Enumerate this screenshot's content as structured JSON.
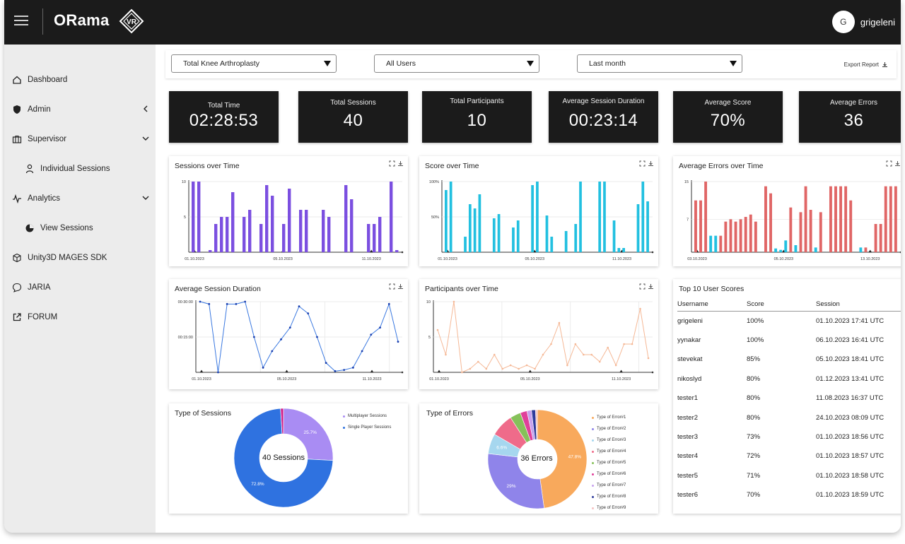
{
  "app": {
    "title": "ORama",
    "badge": "VR"
  },
  "user": {
    "initial": "G",
    "name": "grigeleni"
  },
  "sidebar": {
    "items": [
      {
        "label": "Dashboard",
        "icon": "home-icon"
      },
      {
        "label": "Admin",
        "icon": "shield-icon"
      },
      {
        "label": "Supervisor",
        "icon": "briefcase-icon"
      },
      {
        "label": "Individual Sessions",
        "icon": "person-icon"
      },
      {
        "label": "Analytics",
        "icon": "pulse-icon"
      },
      {
        "label": "View Sessions",
        "icon": "pie-icon"
      },
      {
        "label": "Unity3D MAGES SDK",
        "icon": "cube-icon"
      },
      {
        "label": "JARIA",
        "icon": "chat-icon"
      },
      {
        "label": "FORUM",
        "icon": "external-link-icon"
      }
    ]
  },
  "filters": {
    "procedure": "Total Knee Arthroplasty",
    "users": "All Users",
    "period": "Last month",
    "export_label": "Export Report"
  },
  "stats": [
    {
      "label": "Total Time",
      "value": "02:28:53"
    },
    {
      "label": "Total Sessions",
      "value": "40"
    },
    {
      "label": "Total Participants",
      "value": "10"
    },
    {
      "label": "Average Session Duration",
      "value": "00:23:14"
    },
    {
      "label": "Average Score",
      "value": "70%"
    },
    {
      "label": "Average Errors",
      "value": "36"
    }
  ],
  "chart_data": [
    {
      "type": "bar",
      "title": "Sessions over Time",
      "color": "#7b4fe0",
      "ylim": [
        0,
        10
      ],
      "yticks": [
        "10",
        "5"
      ],
      "xticks": [
        "01.10.2023",
        "05.10.2023",
        "11.10.2023"
      ],
      "values": [
        10,
        10,
        0,
        0.3,
        4,
        5,
        5,
        8.5,
        0,
        5,
        6,
        0,
        4,
        9.5,
        8,
        0,
        4,
        9,
        0,
        6,
        6,
        0,
        0,
        6,
        5,
        0,
        0,
        9.5,
        7.5,
        0,
        0,
        4,
        4,
        5,
        0,
        10,
        0.3
      ]
    },
    {
      "type": "bar",
      "title": "Score over Time",
      "color": "#22c0e0",
      "ylim": [
        0,
        100
      ],
      "yticks": [
        "100%",
        "50%"
      ],
      "xticks": [
        "01.10.2023",
        "05.10.2023",
        "11.10.2023"
      ],
      "values": [
        88,
        100,
        0,
        0,
        22,
        68,
        62,
        82,
        0,
        0,
        48,
        54,
        0,
        0,
        35,
        45,
        0,
        0,
        95,
        100,
        0,
        52,
        22,
        0,
        0,
        30,
        0,
        40,
        100,
        0,
        0,
        0,
        100,
        100,
        0,
        45,
        6,
        6,
        0,
        0,
        68,
        100,
        72
      ]
    },
    {
      "type": "bar",
      "title": "Average Errors over Time",
      "color": "#e06666",
      "highlight_color": "#22c0e0",
      "ylim": [
        0,
        15
      ],
      "yticks": [
        "15",
        "7"
      ],
      "xticks": [
        "03.10.2023",
        "05.10.2023",
        "13.10.2023"
      ],
      "values": [
        11,
        11,
        15,
        3.5,
        3.5,
        3.5,
        6.5,
        7,
        6.5,
        7,
        7.5,
        8,
        6.5,
        0,
        14,
        12.5,
        0.8,
        0.5,
        2.5,
        9.5,
        1.5,
        8.5,
        14,
        9,
        1,
        8.5,
        0,
        14,
        14,
        14,
        14,
        11,
        0,
        1,
        1,
        0,
        6,
        6,
        14,
        14,
        14
      ],
      "highlight_indices": [
        3,
        4,
        16,
        17,
        18,
        20,
        24,
        32,
        33
      ]
    },
    {
      "type": "line",
      "title": "Average Session Duration",
      "color": "#3a78e0",
      "yticks": [
        "00:30:00",
        "00:15:00"
      ],
      "xticks": [
        "01.10.2023",
        "05.10.2023",
        "11.10.2023"
      ],
      "values": [
        30,
        29,
        0,
        29,
        29,
        30,
        15,
        2,
        9,
        14,
        19,
        28,
        25,
        15,
        4,
        0.5,
        1,
        2,
        9,
        16,
        19,
        29,
        13
      ]
    },
    {
      "type": "line",
      "title": "Participants over Time",
      "color": "#f5b896",
      "ylim": [
        0,
        10
      ],
      "yticks": [
        "10",
        "5"
      ],
      "xticks": [
        "01.10.2023",
        "05.10.2023",
        "11.10.2023"
      ],
      "values": [
        6,
        2.5,
        10,
        0,
        0.5,
        1.5,
        0.5,
        2.5,
        0.5,
        1,
        0.5,
        1,
        0.5,
        2.5,
        4,
        7,
        1,
        4,
        2.5,
        2.5,
        1.5,
        3.5,
        1,
        4,
        4,
        9,
        2
      ]
    },
    {
      "type": "pie",
      "title": "Type of Sessions",
      "center_label": "40 Sessions",
      "labels": [
        "Multiplayer Sessions",
        "Single Player Sessions"
      ],
      "values": [
        25.7,
        72.8
      ],
      "value_labels": [
        "25.7%",
        "72.8%"
      ],
      "colors": [
        "#a98cf3",
        "#2f72e0"
      ],
      "extra_slice_color": "#d11f8c"
    },
    {
      "type": "pie",
      "title": "Type of Errors",
      "center_label": "36 Errors",
      "labels": [
        "Type of Error#1",
        "Type of Error#2",
        "Type of Error#3",
        "Type of Error#4",
        "Type of Error#5",
        "Type of Error#6",
        "Type of Error#7",
        "Type of Error#8",
        "Type of Error#9"
      ],
      "values": [
        47.8,
        29,
        6.6,
        7.5,
        3.5,
        2.2,
        1.5,
        1.3,
        0.6
      ],
      "value_labels": [
        "47.8%",
        "29%",
        "6.6%",
        "",
        "",
        "",
        "",
        "",
        ""
      ],
      "colors": [
        "#f8a95c",
        "#8f84ea",
        "#a6d7ef",
        "#ef6b8a",
        "#86c15a",
        "#e0409a",
        "#c7a1ee",
        "#2e3b9c",
        "#f6c3c3"
      ]
    }
  ],
  "top_scores": {
    "title": "Top 10 User Scores",
    "headers": [
      "Username",
      "Score",
      "Session"
    ],
    "rows": [
      [
        "grigeleni",
        "100%",
        "01.10.2023 17:41 UTC"
      ],
      [
        "yynakar",
        "100%",
        "06.10.2023 16:41 UTC"
      ],
      [
        "stevekat",
        "85%",
        "05.10.2023 18:41 UTC"
      ],
      [
        "nikoslyd",
        "80%",
        "01.12.2023 13:41 UTC"
      ],
      [
        "tester1",
        "80%",
        "11.08.2023 16:37 UTC"
      ],
      [
        "tester2",
        "80%",
        "24.10.2023 08:09 UTC"
      ],
      [
        "tester3",
        "73%",
        "01.10.2023 18:56 UTC"
      ],
      [
        "tester4",
        "72%",
        "01.10.2023 18:57 UTC"
      ],
      [
        "tester5",
        "71%",
        "01.10.2023 18:58 UTC"
      ],
      [
        "tester6",
        "70%",
        "01.10.2023 18:59 UTC"
      ]
    ]
  }
}
